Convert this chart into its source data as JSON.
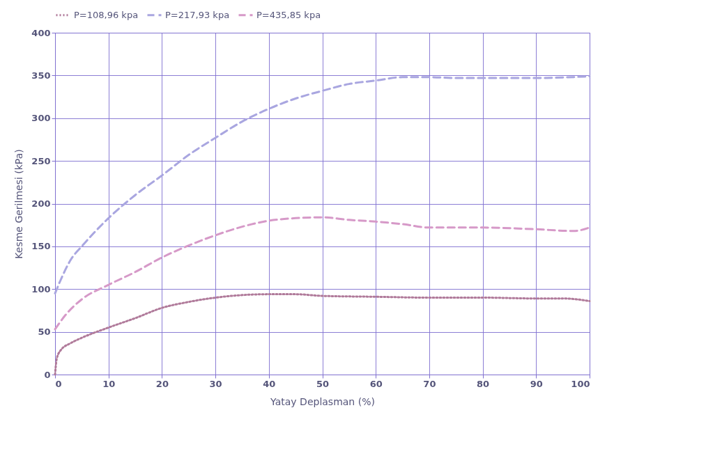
{
  "chart_data": {
    "type": "line",
    "xlabel": "Yatay Deplasman (%)",
    "ylabel": "Kesme Gerilmesi (kPa)",
    "xlim": [
      0,
      100
    ],
    "ylim": [
      0,
      400
    ],
    "xticks": [
      0,
      10,
      20,
      30,
      40,
      50,
      60,
      70,
      80,
      90,
      100
    ],
    "yticks": [
      0,
      50,
      100,
      150,
      200,
      250,
      300,
      350,
      400
    ],
    "grid": true,
    "legend": "top",
    "marker": "none",
    "series": [
      {
        "name": "P=108,96 kpa",
        "color": "#b07a9a",
        "line_style": "dotted",
        "x": [
          0,
          0.3,
          1,
          3,
          5,
          10,
          15,
          20,
          25,
          30,
          35,
          40,
          45,
          50,
          60,
          70,
          80,
          90,
          95,
          100
        ],
        "values": [
          0,
          18,
          28,
          37,
          43,
          55,
          66,
          78,
          85,
          90,
          93,
          94,
          94,
          92,
          91,
          90,
          90,
          89,
          89,
          86
        ]
      },
      {
        "name": "P=217,93 kpa",
        "color": "#a9a6e0",
        "line_style": "dashed",
        "x": [
          0,
          1,
          3,
          5,
          10,
          15,
          20,
          25,
          30,
          35,
          40,
          45,
          50,
          55,
          60,
          65,
          70,
          75,
          80,
          90,
          100
        ],
        "values": [
          95,
          110,
          135,
          150,
          183,
          210,
          233,
          257,
          277,
          296,
          311,
          323,
          332,
          340,
          344,
          348,
          348,
          347,
          347,
          347,
          349
        ]
      },
      {
        "name": "P=435,85 kpa",
        "color": "#d699c8",
        "line_style": "dashed",
        "x": [
          0,
          2,
          5,
          10,
          15,
          20,
          25,
          30,
          35,
          40,
          45,
          50,
          55,
          60,
          65,
          70,
          80,
          90,
          97,
          100
        ],
        "values": [
          53,
          70,
          88,
          105,
          120,
          137,
          151,
          163,
          173,
          180,
          183,
          184,
          181,
          179,
          176,
          172,
          172,
          170,
          168,
          172
        ]
      }
    ]
  }
}
